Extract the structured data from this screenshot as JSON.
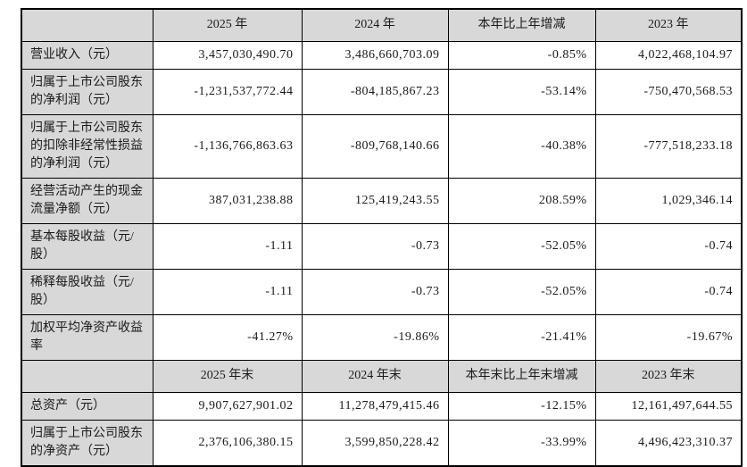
{
  "table": {
    "colors": {
      "header_bg": "#d8d8d8",
      "border": "#000000",
      "cell_bg": "#ffffff"
    },
    "section1": {
      "headers": {
        "blank": "",
        "col1": "2025 年",
        "col2": "2024 年",
        "col3": "本年比上年增减",
        "col4": "2023 年"
      },
      "rows": [
        {
          "label": "营业收入（元）",
          "y1": "3,457,030,490.70",
          "y2": "3,486,660,703.09",
          "chg": "-0.85%",
          "y3": "4,022,468,104.97"
        },
        {
          "label": "归属于上市公司股东的净利润（元）",
          "y1": "-1,231,537,772.44",
          "y2": "-804,185,867.23",
          "chg": "-53.14%",
          "y3": "-750,470,568.53"
        },
        {
          "label": "归属于上市公司股东的扣除非经常性损益的净利润（元）",
          "y1": "-1,136,766,863.63",
          "y2": "-809,768,140.66",
          "chg": "-40.38%",
          "y3": "-777,518,233.18"
        },
        {
          "label": "经营活动产生的现金流量净额（元）",
          "y1": "387,031,238.88",
          "y2": "125,419,243.55",
          "chg": "208.59%",
          "y3": "1,029,346.14"
        },
        {
          "label": "基本每股收益（元/股）",
          "y1": "-1.11",
          "y2": "-0.73",
          "chg": "-52.05%",
          "y3": "-0.74"
        },
        {
          "label": "稀释每股收益（元/股）",
          "y1": "-1.11",
          "y2": "-0.73",
          "chg": "-52.05%",
          "y3": "-0.74"
        },
        {
          "label": "加权平均净资产收益率",
          "y1": "-41.27%",
          "y2": "-19.86%",
          "chg": "-21.41%",
          "y3": "-19.67%"
        }
      ]
    },
    "section2": {
      "headers": {
        "blank": "",
        "col1": "2025 年末",
        "col2": "2024 年末",
        "col3": "本年末比上年末增减",
        "col4": "2023 年末"
      },
      "rows": [
        {
          "label": "总资产（元）",
          "y1": "9,907,627,901.02",
          "y2": "11,278,479,415.46",
          "chg": "-12.15%",
          "y3": "12,161,497,644.55"
        },
        {
          "label": "归属于上市公司股东的净资产（元）",
          "y1": "2,376,106,380.15",
          "y2": "3,599,850,228.42",
          "chg": "-33.99%",
          "y3": "4,496,423,310.37"
        }
      ]
    }
  }
}
